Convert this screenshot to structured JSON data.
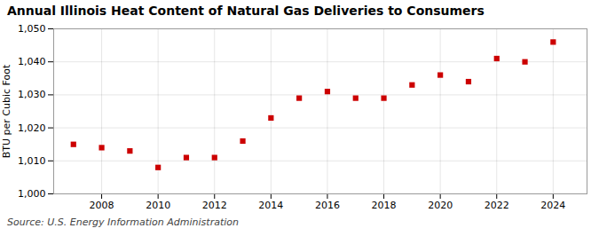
{
  "chart_data": {
    "type": "scatter",
    "title": "Annual Illinois Heat Content of Natural Gas Deliveries to Consumers",
    "ylabel": "BTU per Cubic Foot",
    "source": "Source: U.S. Energy Information Administration",
    "x": [
      2007,
      2008,
      2009,
      2010,
      2011,
      2012,
      2013,
      2014,
      2015,
      2016,
      2017,
      2018,
      2019,
      2020,
      2021,
      2022,
      2023,
      2024
    ],
    "values": [
      1015,
      1014,
      1013,
      1008,
      1011,
      1011,
      1016,
      1023,
      1029,
      1031,
      1029,
      1029,
      1033,
      1036,
      1034,
      1041,
      1040,
      1046
    ],
    "color": "#cc0000",
    "marker": "square",
    "xlim": [
      2006.3,
      2025.2
    ],
    "xticks": [
      2008,
      2010,
      2012,
      2014,
      2016,
      2018,
      2020,
      2022,
      2024
    ],
    "ylim": [
      1000,
      1050
    ],
    "yticks": [
      {
        "value": 1000,
        "label": "1,000"
      },
      {
        "value": 1010,
        "label": "1,010"
      },
      {
        "value": 1020,
        "label": "1,020"
      },
      {
        "value": 1030,
        "label": "1,030"
      },
      {
        "value": 1040,
        "label": "1,040"
      },
      {
        "value": 1050,
        "label": "1,050"
      }
    ],
    "grid": true
  }
}
